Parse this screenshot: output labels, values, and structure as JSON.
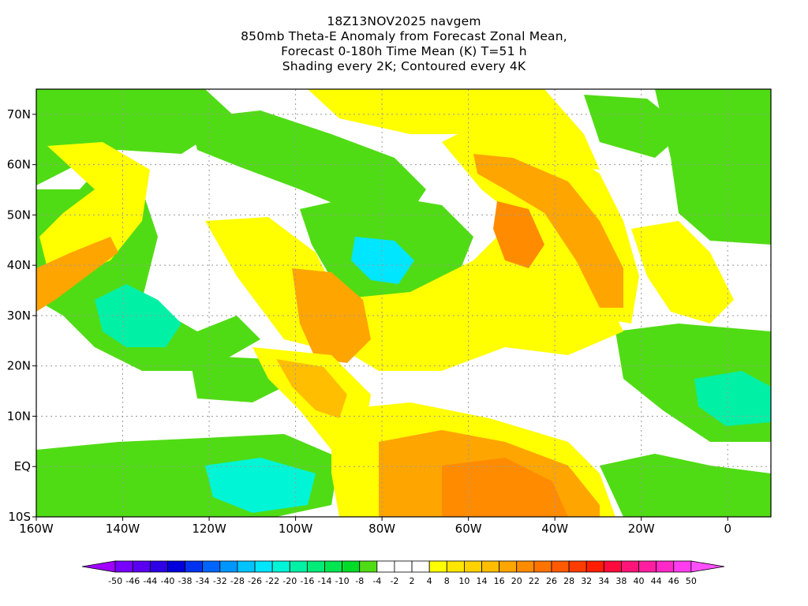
{
  "title": {
    "line1": "18Z13NOV2025 navgem",
    "line2": "850mb Theta-E Anomaly from Forecast Zonal Mean,",
    "line3": "Forecast 0-180h Time Mean (K) T=51 h",
    "line4": "Shading every 2K; Contoured every 4K"
  },
  "map": {
    "lon_range": [
      -160,
      10
    ],
    "lat_range": [
      -10,
      75
    ],
    "lon_ticks": [
      {
        "value": -160,
        "label": "160W"
      },
      {
        "value": -140,
        "label": "140W"
      },
      {
        "value": -120,
        "label": "120W"
      },
      {
        "value": -100,
        "label": "100W"
      },
      {
        "value": -80,
        "label": "80W"
      },
      {
        "value": -60,
        "label": "60W"
      },
      {
        "value": -40,
        "label": "40W"
      },
      {
        "value": -20,
        "label": "20W"
      },
      {
        "value": 0,
        "label": "0"
      }
    ],
    "lat_ticks": [
      {
        "value": 70,
        "label": "70N"
      },
      {
        "value": 60,
        "label": "60N"
      },
      {
        "value": 50,
        "label": "50N"
      },
      {
        "value": 40,
        "label": "40N"
      },
      {
        "value": 30,
        "label": "30N"
      },
      {
        "value": 20,
        "label": "20N"
      },
      {
        "value": 10,
        "label": "10N"
      },
      {
        "value": 0,
        "label": "EQ"
      },
      {
        "value": -10,
        "label": "10S"
      }
    ],
    "grid": "dotted"
  },
  "colorbar": {
    "labels": [
      "-50",
      "-46",
      "-44",
      "-40",
      "-38",
      "-34",
      "-32",
      "-28",
      "-26",
      "-22",
      "-20",
      "-16",
      "-14",
      "-10",
      "-8",
      "-4",
      "-2",
      "2",
      "4",
      "8",
      "10",
      "14",
      "16",
      "20",
      "22",
      "26",
      "28",
      "32",
      "34",
      "38",
      "40",
      "44",
      "46",
      "50"
    ],
    "colors": [
      "#a000ff",
      "#7800ff",
      "#5a00f0",
      "#2d00e6",
      "#0000dc",
      "#0032f0",
      "#0064ff",
      "#0096ff",
      "#00c3ff",
      "#00e6ff",
      "#00f5d7",
      "#00f0a5",
      "#00eb78",
      "#00e650",
      "#00dc28",
      "#50dc14",
      "#ffffff",
      "#ffffff",
      "#ffffff",
      "#ffff00",
      "#ffe600",
      "#ffd200",
      "#ffbe00",
      "#ffa500",
      "#ff8c00",
      "#ff7300",
      "#ff5a00",
      "#ff3c00",
      "#ff1e00",
      "#ff0a3c",
      "#ff1478",
      "#ff1ea0",
      "#ff28c8",
      "#ff3cf0",
      "#ff50ff"
    ]
  }
}
